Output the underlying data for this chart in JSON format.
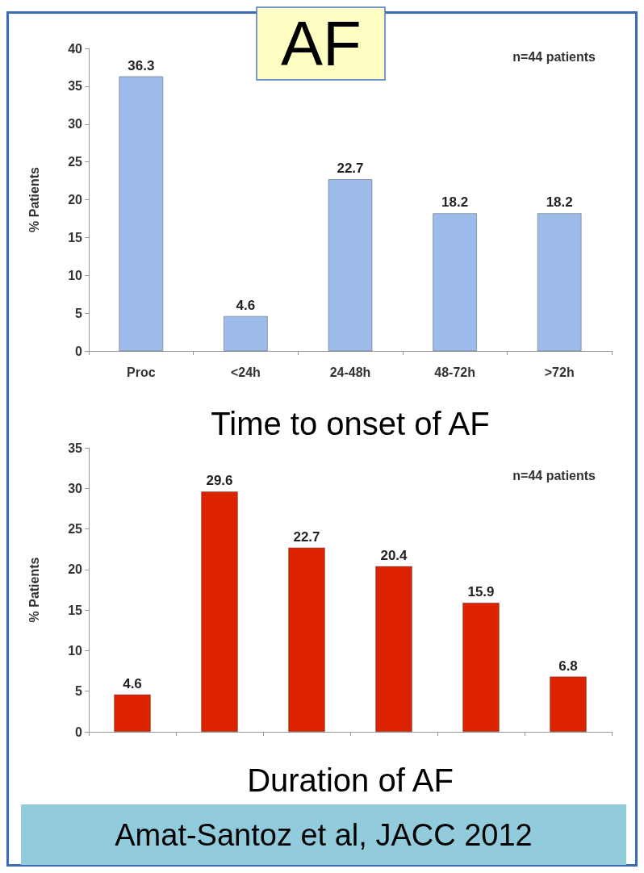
{
  "chart_data": [
    {
      "type": "bar",
      "title": "AF",
      "xlabel": "Time to onset of AF",
      "ylabel": "% Patients",
      "categories": [
        "Proc",
        "<24h",
        "24-48h",
        "48-72h",
        ">72h"
      ],
      "series": [
        {
          "color": "#9dbcec",
          "values": [
            36.3,
            4.6,
            22.7,
            18.2,
            18.2
          ]
        }
      ],
      "ylim": [
        0,
        40
      ],
      "yticks": [
        0,
        5,
        10,
        15,
        20,
        25,
        30,
        35,
        40
      ],
      "data_labels": true,
      "grid": false,
      "annotations": [
        "n=44 patients"
      ]
    },
    {
      "type": "bar",
      "xlabel": "Duration of AF",
      "ylabel": "% Patients",
      "categories": [
        null,
        null,
        null,
        null,
        null,
        null
      ],
      "series": [
        {
          "color": "#dd2200",
          "values": [
            4.6,
            29.6,
            22.7,
            20.4,
            15.9,
            6.8
          ]
        }
      ],
      "ylim": [
        0,
        35
      ],
      "yticks": [
        0,
        5,
        10,
        15,
        20,
        25,
        30,
        35
      ],
      "data_labels": true,
      "grid": false,
      "annotations": [
        "n=44 patients",
        "Amat-Santoz et al, JACC 2012"
      ]
    }
  ]
}
